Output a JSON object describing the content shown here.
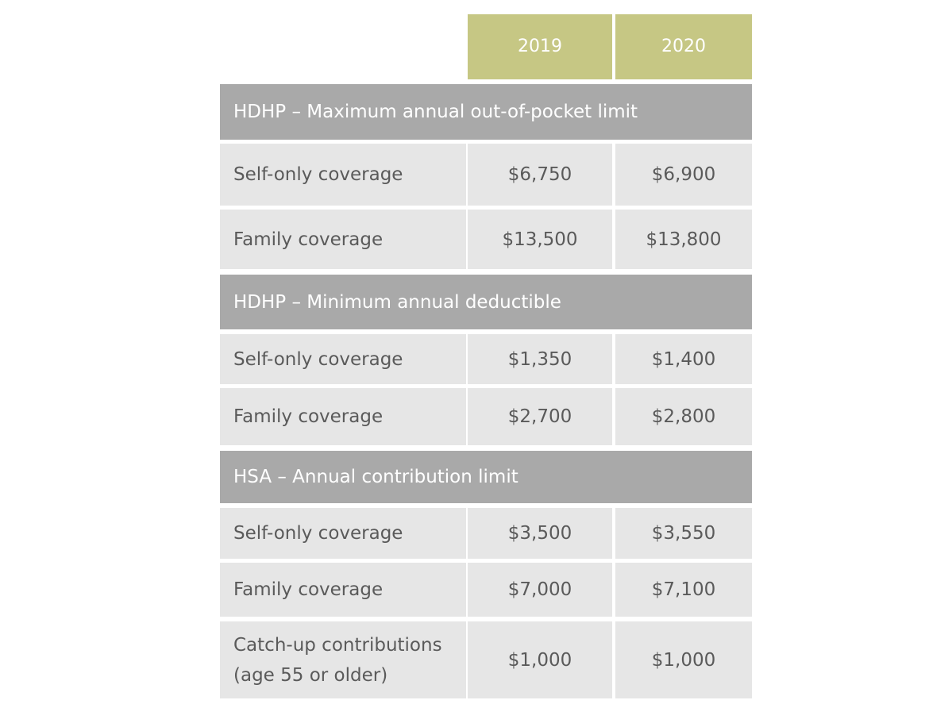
{
  "header": {
    "columns": [
      "2019",
      "2020"
    ]
  },
  "sections": [
    {
      "title": "HDHP – Maximum annual out-of-pocket limit",
      "rows": [
        {
          "label": "Self-only coverage",
          "values": [
            "$6,750",
            "$6,900"
          ]
        },
        {
          "label": "Family coverage",
          "values": [
            "$13,500",
            "$13,800"
          ]
        }
      ]
    },
    {
      "title": "HDHP – Minimum annual deductible",
      "rows": [
        {
          "label": "Self-only coverage",
          "values": [
            "$1,350",
            "$1,400"
          ]
        },
        {
          "label": "Family coverage",
          "values": [
            "$2,700",
            "$2,800"
          ]
        }
      ]
    },
    {
      "title": "HSA – Annual contribution limit",
      "rows": [
        {
          "label": "Self-only coverage",
          "values": [
            "$3,500",
            "$3,550"
          ]
        },
        {
          "label": "Family coverage",
          "values": [
            "$7,000",
            "$7,100"
          ]
        },
        {
          "label": "Catch-up contributions (age 55 or older)",
          "values": [
            "$1,000",
            "$1,000"
          ]
        }
      ]
    }
  ]
}
